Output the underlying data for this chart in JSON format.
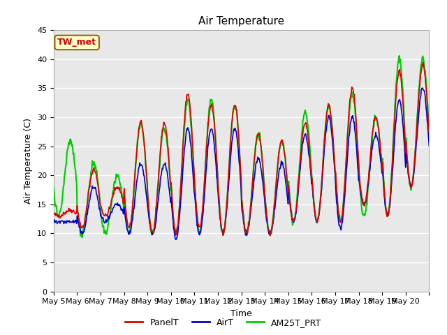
{
  "title": "Air Temperature",
  "xlabel": "Time",
  "ylabel": "Air Temperature (C)",
  "ylim": [
    0,
    45
  ],
  "yticks": [
    0,
    5,
    10,
    15,
    20,
    25,
    30,
    35,
    40,
    45
  ],
  "xlabels": [
    "May 5",
    "May 6",
    "May 7",
    "May 8",
    "May 9",
    "May 10",
    "May 11",
    "May 12",
    "May 13",
    "May 14",
    "May 15",
    "May 16",
    "May 17",
    "May 18",
    "May 19",
    "May 20"
  ],
  "station_label": "TW_met",
  "station_label_color": "#cc0000",
  "station_box_facecolor": "#ffffcc",
  "station_box_edgecolor": "#996600",
  "line_colors": {
    "PanelT": "#dd0000",
    "AirT": "#0000cc",
    "AM25T_PRT": "#00cc00"
  },
  "line_widths": {
    "PanelT": 1.2,
    "AirT": 1.2,
    "AM25T_PRT": 1.5
  },
  "bg_color": "#ffffff",
  "plot_bg_color": "#e8e8e8",
  "grid_color": "#ffffff",
  "title_fontsize": 11,
  "axis_label_fontsize": 9,
  "tick_fontsize": 8,
  "legend_fontsize": 9
}
